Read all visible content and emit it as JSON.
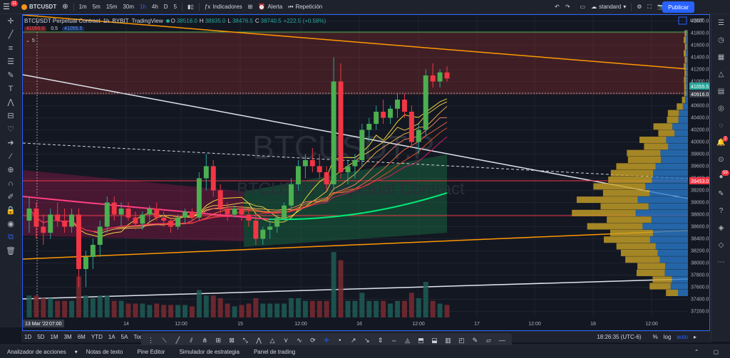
{
  "toolbar": {
    "menu_badge": "11",
    "symbol": "BTCUSDT",
    "timeframes": [
      "1m",
      "5m",
      "15m",
      "30m",
      "1h",
      "4h",
      "D",
      "5"
    ],
    "active_timeframe": "1h",
    "indicators_label": "Indicadores",
    "alert_label": "Alerta",
    "replay_label": "Repetición",
    "layout_label": "standard",
    "publish_label": "Publicar"
  },
  "legend": {
    "title": "BTCUSDT Perpetual Contract",
    "interval": "1h",
    "exchange": "BYBIT",
    "source": "TradingView",
    "open_label": "O",
    "open": "38518.0",
    "high_label": "H",
    "high": "38935.0",
    "low_label": "L",
    "low": "38476.5",
    "close_label": "C",
    "close": "38740.5",
    "change": "+222.5 (+0.58%)",
    "bid": "41055.0",
    "spread": "0.5",
    "ask": "41055.5",
    "collapse_count": "5"
  },
  "watermark": {
    "line1": "BTCUSDT.P",
    "line2": "BTCUSDT Perpetual Contract"
  },
  "price_axis": {
    "currency": "USDT",
    "ticks": [
      "42000.0",
      "41800.0",
      "41600.0",
      "41400.0",
      "41200.0",
      "41000.0",
      "40800.0",
      "40600.0",
      "40400.0",
      "40200.0",
      "40000.0",
      "39800.0",
      "39600.0",
      "39400.0",
      "39200.0",
      "39000.0",
      "38800.0",
      "38600.0",
      "38400.0",
      "38200.0",
      "38000.0",
      "37800.0",
      "37600.0",
      "37400.0",
      "37200.0"
    ],
    "last_price": "41055.5",
    "crosshair_price": "40916.0",
    "red_line_price": "39453.0"
  },
  "time_axis": {
    "ticks": [
      "14",
      "12:00",
      "15",
      "12:00",
      "16",
      "12:00",
      "17",
      "12:00",
      "18",
      "12:00"
    ],
    "crosshair_date": "13 Mar '22",
    "crosshair_time": "07:00"
  },
  "bottom": {
    "ranges": [
      "1D",
      "5D",
      "1M",
      "3M",
      "6M",
      "YTD",
      "1A",
      "5A",
      "Todos"
    ],
    "clock": "18:26:35 (UTC-6)",
    "percent_label": "%",
    "log_label": "log",
    "auto_label": "auto"
  },
  "footer": {
    "tabs": [
      "Analizador de acciones",
      "Notas de texto",
      "Pine Editor",
      "Simulador de estrategia",
      "Panel de trading"
    ]
  },
  "right_badges": {
    "alerts": "2",
    "notifications": "59"
  },
  "chart_data": {
    "type": "candlestick",
    "ylim": [
      37100,
      42100
    ],
    "x_range_hours": [
      0,
      125
    ],
    "candles": [
      [
        38700,
        39100,
        38500,
        38900
      ],
      [
        38900,
        39000,
        38400,
        38600
      ],
      [
        38600,
        38800,
        38300,
        38500
      ],
      [
        38500,
        38900,
        38400,
        38800
      ],
      [
        38800,
        39000,
        38600,
        38700
      ],
      [
        38700,
        38900,
        38500,
        38600
      ],
      [
        38600,
        38900,
        38500,
        38800
      ],
      [
        38800,
        38900,
        37600,
        37900
      ],
      [
        37900,
        38200,
        37600,
        38100
      ],
      [
        38100,
        38400,
        37900,
        38300
      ],
      [
        38300,
        38700,
        38100,
        38600
      ],
      [
        38600,
        39100,
        38500,
        39000
      ],
      [
        39000,
        39100,
        38700,
        38800
      ],
      [
        38800,
        39000,
        38600,
        38900
      ],
      [
        38900,
        39000,
        38700,
        38750
      ],
      [
        38750,
        38850,
        38550,
        38650
      ],
      [
        38650,
        38850,
        38550,
        38800
      ],
      [
        38800,
        38950,
        38700,
        38900
      ],
      [
        38900,
        39000,
        38700,
        38750
      ],
      [
        38750,
        38850,
        38600,
        38700
      ],
      [
        38700,
        38750,
        38500,
        38600
      ],
      [
        38600,
        38800,
        38550,
        38750
      ],
      [
        38750,
        38900,
        38650,
        38850
      ],
      [
        38850,
        38900,
        38700,
        38750
      ],
      [
        38750,
        39500,
        38700,
        39400
      ],
      [
        39400,
        39800,
        39200,
        39600
      ],
      [
        39600,
        39700,
        39100,
        39200
      ],
      [
        39200,
        39300,
        38800,
        38900
      ],
      [
        38900,
        39000,
        38700,
        38800
      ],
      [
        38800,
        38950,
        38750,
        38900
      ],
      [
        38900,
        38950,
        38700,
        38800
      ],
      [
        38800,
        38900,
        38600,
        38700
      ],
      [
        38700,
        38800,
        38300,
        38400
      ],
      [
        38400,
        38600,
        38300,
        38550
      ],
      [
        38550,
        38700,
        38400,
        38600
      ],
      [
        38600,
        38800,
        38500,
        38750
      ],
      [
        38750,
        39000,
        38700,
        38950
      ],
      [
        38950,
        39400,
        38900,
        39300
      ],
      [
        39300,
        39700,
        39200,
        39600
      ],
      [
        39600,
        39800,
        39400,
        39700
      ],
      [
        39700,
        39900,
        39500,
        39600
      ],
      [
        39600,
        39800,
        39400,
        39500
      ],
      [
        39500,
        39600,
        39200,
        39300
      ],
      [
        39300,
        41400,
        39200,
        41000
      ],
      [
        41000,
        41300,
        39400,
        39500
      ],
      [
        39500,
        39700,
        39300,
        39600
      ],
      [
        39600,
        39800,
        39400,
        39700
      ],
      [
        39700,
        40300,
        39600,
        40200
      ],
      [
        40200,
        40400,
        40000,
        40300
      ],
      [
        40300,
        40600,
        40200,
        40500
      ],
      [
        40500,
        40700,
        40300,
        40400
      ],
      [
        40400,
        40600,
        40300,
        40550
      ],
      [
        40550,
        40800,
        40400,
        40700
      ],
      [
        40700,
        40800,
        40400,
        40500
      ],
      [
        40500,
        40600,
        39900,
        40000
      ],
      [
        40000,
        40300,
        39800,
        40200
      ],
      [
        40200,
        41200,
        40100,
        41100
      ],
      [
        41100,
        41300,
        40900,
        41000
      ],
      [
        41000,
        41200,
        40900,
        41150
      ],
      [
        41150,
        41250,
        41000,
        41050
      ]
    ],
    "horizontal_levels": [
      39453.0,
      38850.0,
      40916.0
    ],
    "volume_profile": "right-aligned horizontal histogram",
    "annotations": [
      "regression channel",
      "moving-average ribbon",
      "trend lines"
    ]
  }
}
